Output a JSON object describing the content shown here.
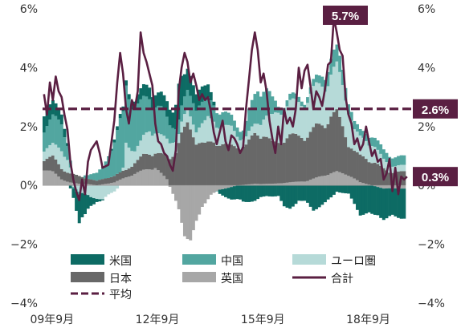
{
  "chart_data": {
    "type": "bar",
    "subtype": "stacked bar with line overlay",
    "y_axis": {
      "range": [
        -4,
        6
      ],
      "ticks": [
        "6%",
        "4%",
        "2%",
        "0%",
        "−2%",
        "−4%"
      ],
      "tick_values": [
        6,
        4,
        2,
        0,
        -2,
        -4
      ],
      "both_sides": true
    },
    "x_axis": {
      "ticks": [
        "09年9月",
        "12年9月",
        "15年9月",
        "18年9月"
      ],
      "tick_months": [
        0,
        36,
        72,
        108
      ]
    },
    "grid": false,
    "legend_placement": "bottom-left inside plot",
    "colors": {
      "us": "#0d6b64",
      "china": "#52a6a0",
      "euro": "#b6dad8",
      "japan": "#686868",
      "uk": "#a7a7a7",
      "total": "#5a1f42",
      "average": "#5a1f42",
      "callout_bg": "#5a1f42"
    },
    "legend": [
      {
        "key": "us",
        "label": "米国",
        "kind": "box"
      },
      {
        "key": "china",
        "label": "中国",
        "kind": "box"
      },
      {
        "key": "euro",
        "label": "ユーロ圏",
        "kind": "box"
      },
      {
        "key": "japan",
        "label": "日本",
        "kind": "box"
      },
      {
        "key": "uk",
        "label": "英国",
        "kind": "box"
      },
      {
        "key": "total",
        "label": "合計",
        "kind": "line"
      },
      {
        "key": "average",
        "label": "平均",
        "kind": "dash"
      }
    ],
    "series_order": [
      "uk",
      "japan",
      "euro",
      "china",
      "us"
    ],
    "knots": {
      "uk": [
        [
          0,
          0.55
        ],
        [
          3,
          0.45
        ],
        [
          6,
          0.2
        ],
        [
          9,
          0.1
        ],
        [
          12,
          0.05
        ],
        [
          15,
          0.05
        ],
        [
          18,
          0.0
        ],
        [
          24,
          0.1
        ],
        [
          30,
          0.35
        ],
        [
          34,
          0.5
        ],
        [
          38,
          0.6
        ],
        [
          42,
          0.2
        ],
        [
          46,
          -0.8
        ],
        [
          48,
          -1.6
        ],
        [
          50,
          -1.8
        ],
        [
          52,
          -1.3
        ],
        [
          54,
          -0.7
        ],
        [
          57,
          -0.3
        ],
        [
          60,
          -0.15
        ],
        [
          66,
          0.0
        ],
        [
          72,
          0.05
        ],
        [
          78,
          0.05
        ],
        [
          84,
          0.1
        ],
        [
          90,
          0.15
        ],
        [
          96,
          0.35
        ],
        [
          100,
          0.45
        ],
        [
          104,
          0.35
        ],
        [
          108,
          0.1
        ],
        [
          112,
          0.0
        ],
        [
          116,
          -0.1
        ],
        [
          120,
          -0.1
        ]
      ],
      "japan": [
        [
          0,
          0.35
        ],
        [
          3,
          0.5
        ],
        [
          6,
          0.35
        ],
        [
          9,
          0.3
        ],
        [
          12,
          0.25
        ],
        [
          14,
          0.2
        ],
        [
          18,
          0.15
        ],
        [
          22,
          0.2
        ],
        [
          28,
          0.25
        ],
        [
          32,
          0.4
        ],
        [
          34,
          0.5
        ],
        [
          38,
          0.5
        ],
        [
          42,
          0.75
        ],
        [
          45,
          1.15
        ],
        [
          47,
          1.7
        ],
        [
          49,
          2.0
        ],
        [
          52,
          1.5
        ],
        [
          55,
          1.35
        ],
        [
          58,
          1.45
        ],
        [
          60,
          1.4
        ],
        [
          63,
          1.3
        ],
        [
          66,
          1.3
        ],
        [
          69,
          1.3
        ],
        [
          72,
          1.65
        ],
        [
          75,
          1.65
        ],
        [
          78,
          1.35
        ],
        [
          80,
          1.35
        ],
        [
          84,
          1.55
        ],
        [
          87,
          1.5
        ],
        [
          90,
          1.5
        ],
        [
          93,
          1.7
        ],
        [
          96,
          1.7
        ],
        [
          98,
          1.9
        ],
        [
          100,
          1.95
        ],
        [
          102,
          1.55
        ],
        [
          104,
          1.05
        ],
        [
          106,
          0.9
        ],
        [
          110,
          0.85
        ],
        [
          113,
          0.75
        ],
        [
          116,
          0.55
        ],
        [
          118,
          0.45
        ],
        [
          120,
          0.45
        ]
      ],
      "euro": [
        [
          0,
          0.35
        ],
        [
          3,
          0.4
        ],
        [
          6,
          0.6
        ],
        [
          8,
          0.45
        ],
        [
          10,
          -0.05
        ],
        [
          12,
          -0.2
        ],
        [
          16,
          -0.4
        ],
        [
          20,
          -0.45
        ],
        [
          24,
          -0.2
        ],
        [
          27,
          0.1
        ],
        [
          28,
          0.9
        ],
        [
          31,
          0.4
        ],
        [
          33,
          0.5
        ],
        [
          36,
          0.8
        ],
        [
          40,
          0.6
        ],
        [
          44,
          0.5
        ],
        [
          46,
          0.3
        ],
        [
          48,
          0.4
        ],
        [
          52,
          0.45
        ],
        [
          56,
          0.8
        ],
        [
          60,
          0.6
        ],
        [
          64,
          0.6
        ],
        [
          66,
          0.4
        ],
        [
          68,
          0.25
        ],
        [
          72,
          0.3
        ],
        [
          76,
          0.7
        ],
        [
          80,
          1.0
        ],
        [
          84,
          1.1
        ],
        [
          88,
          1.1
        ],
        [
          92,
          1.3
        ],
        [
          96,
          1.3
        ],
        [
          100,
          1.5
        ],
        [
          104,
          1.2
        ],
        [
          106,
          0.7
        ],
        [
          108,
          0.6
        ],
        [
          112,
          0.6
        ],
        [
          116,
          0.3
        ],
        [
          120,
          0.2
        ]
      ],
      "china": [
        [
          0,
          0.7
        ],
        [
          3,
          0.9
        ],
        [
          6,
          0.9
        ],
        [
          8,
          0.5
        ],
        [
          10,
          -0.05
        ],
        [
          12,
          -0.1
        ],
        [
          14,
          0.1
        ],
        [
          18,
          0.25
        ],
        [
          20,
          0.4
        ],
        [
          24,
          1.1
        ],
        [
          26,
          1.7
        ],
        [
          28,
          1.9
        ],
        [
          30,
          1.5
        ],
        [
          33,
          1.3
        ],
        [
          36,
          1.1
        ],
        [
          38,
          0.9
        ],
        [
          40,
          0.9
        ],
        [
          43,
          0.6
        ],
        [
          45,
          0.45
        ],
        [
          48,
          0.55
        ],
        [
          52,
          0.8
        ],
        [
          56,
          0.6
        ],
        [
          60,
          0.5
        ],
        [
          64,
          0.35
        ],
        [
          68,
          0.3
        ],
        [
          70,
          0.7
        ],
        [
          73,
          1.1
        ],
        [
          76,
          0.9
        ],
        [
          80,
          0.2
        ],
        [
          84,
          0.2
        ],
        [
          88,
          0.15
        ],
        [
          90,
          0.2
        ],
        [
          94,
          0.25
        ],
        [
          97,
          0.5
        ],
        [
          99,
          0.55
        ],
        [
          102,
          0.5
        ],
        [
          105,
          0.3
        ],
        [
          108,
          0.2
        ],
        [
          112,
          0.3
        ],
        [
          116,
          0.3
        ],
        [
          120,
          0.3
        ]
      ],
      "us": [
        [
          0,
          0.6
        ],
        [
          4,
          0.4
        ],
        [
          7,
          0.3
        ],
        [
          10,
          -0.3
        ],
        [
          12,
          -0.9
        ],
        [
          14,
          -0.7
        ],
        [
          16,
          -0.3
        ],
        [
          18,
          -0.1
        ],
        [
          24,
          0.1
        ],
        [
          30,
          0.2
        ],
        [
          33,
          0.35
        ],
        [
          36,
          0.4
        ],
        [
          40,
          0.45
        ],
        [
          44,
          0.55
        ],
        [
          46,
          1.2
        ],
        [
          48,
          0.7
        ],
        [
          52,
          0.6
        ],
        [
          56,
          0.4
        ],
        [
          60,
          -0.15
        ],
        [
          64,
          -0.4
        ],
        [
          68,
          -0.55
        ],
        [
          72,
          -0.5
        ],
        [
          76,
          -0.35
        ],
        [
          80,
          -0.35
        ],
        [
          82,
          -0.75
        ],
        [
          84,
          -0.75
        ],
        [
          87,
          -0.5
        ],
        [
          90,
          -0.6
        ],
        [
          92,
          -0.8
        ],
        [
          96,
          -0.6
        ],
        [
          100,
          -0.2
        ],
        [
          104,
          -0.3
        ],
        [
          106,
          -0.6
        ],
        [
          108,
          -0.95
        ],
        [
          110,
          -0.95
        ],
        [
          112,
          -1.0
        ],
        [
          114,
          -0.9
        ],
        [
          116,
          -1.0
        ],
        [
          120,
          -0.95
        ]
      ],
      "total": [
        [
          0,
          3.1
        ],
        [
          1,
          2.4
        ],
        [
          2,
          3.5
        ],
        [
          3,
          2.9
        ],
        [
          4,
          3.7
        ],
        [
          5,
          3.2
        ],
        [
          6,
          3.0
        ],
        [
          7,
          2.4
        ],
        [
          8,
          1.9
        ],
        [
          9,
          0.8
        ],
        [
          10,
          0.2
        ],
        [
          11,
          -0.2
        ],
        [
          12,
          -0.5
        ],
        [
          13,
          0.2
        ],
        [
          14,
          -0.3
        ],
        [
          15,
          0.8
        ],
        [
          16,
          1.2
        ],
        [
          18,
          1.5
        ],
        [
          19,
          1.1
        ],
        [
          20,
          0.6
        ],
        [
          22,
          0.7
        ],
        [
          24,
          2.2
        ],
        [
          25,
          3.5
        ],
        [
          26,
          4.5
        ],
        [
          27,
          3.8
        ],
        [
          28,
          2.6
        ],
        [
          29,
          2.1
        ],
        [
          30,
          2.9
        ],
        [
          31,
          2.6
        ],
        [
          32,
          3.2
        ],
        [
          33,
          5.2
        ],
        [
          34,
          4.5
        ],
        [
          35,
          4.2
        ],
        [
          36,
          3.8
        ],
        [
          37,
          3.4
        ],
        [
          38,
          2.1
        ],
        [
          39,
          1.5
        ],
        [
          40,
          1.4
        ],
        [
          41,
          1.1
        ],
        [
          42,
          1.0
        ],
        [
          43,
          0.7
        ],
        [
          44,
          0.5
        ],
        [
          45,
          1.2
        ],
        [
          46,
          3.2
        ],
        [
          47,
          4.0
        ],
        [
          48,
          4.5
        ],
        [
          49,
          4.2
        ],
        [
          50,
          3.5
        ],
        [
          51,
          3.8
        ],
        [
          52,
          3.4
        ],
        [
          53,
          2.9
        ],
        [
          54,
          3.1
        ],
        [
          55,
          2.9
        ],
        [
          56,
          3.0
        ],
        [
          57,
          2.5
        ],
        [
          58,
          1.8
        ],
        [
          59,
          1.4
        ],
        [
          60,
          1.8
        ],
        [
          61,
          2.2
        ],
        [
          62,
          1.5
        ],
        [
          63,
          1.2
        ],
        [
          64,
          1.7
        ],
        [
          65,
          1.6
        ],
        [
          66,
          1.4
        ],
        [
          67,
          1.1
        ],
        [
          68,
          1.3
        ],
        [
          69,
          2.6
        ],
        [
          70,
          3.6
        ],
        [
          71,
          4.6
        ],
        [
          72,
          5.2
        ],
        [
          73,
          4.6
        ],
        [
          74,
          3.5
        ],
        [
          75,
          3.8
        ],
        [
          76,
          3.2
        ],
        [
          77,
          2.2
        ],
        [
          78,
          1.6
        ],
        [
          79,
          1.1
        ],
        [
          80,
          2.0
        ],
        [
          81,
          1.4
        ],
        [
          82,
          2.6
        ],
        [
          83,
          2.1
        ],
        [
          84,
          2.3
        ],
        [
          85,
          2.0
        ],
        [
          86,
          2.6
        ],
        [
          87,
          4.0
        ],
        [
          88,
          3.3
        ],
        [
          89,
          3.9
        ],
        [
          90,
          4.1
        ],
        [
          91,
          3.4
        ],
        [
          92,
          2.6
        ],
        [
          93,
          3.2
        ],
        [
          94,
          3.0
        ],
        [
          95,
          2.7
        ],
        [
          96,
          3.3
        ],
        [
          97,
          4.1
        ],
        [
          98,
          4.2
        ],
        [
          99,
          5.7
        ],
        [
          100,
          5.2
        ],
        [
          101,
          4.6
        ],
        [
          102,
          4.4
        ],
        [
          103,
          3.0
        ],
        [
          104,
          2.4
        ],
        [
          105,
          2.1
        ],
        [
          106,
          1.4
        ],
        [
          107,
          1.6
        ],
        [
          108,
          1.2
        ],
        [
          109,
          1.4
        ],
        [
          110,
          2.0
        ],
        [
          111,
          1.5
        ],
        [
          112,
          1.0
        ],
        [
          113,
          1.2
        ],
        [
          114,
          0.8
        ],
        [
          115,
          0.9
        ],
        [
          116,
          0.2
        ],
        [
          117,
          0.4
        ],
        [
          118,
          0.9
        ],
        [
          119,
          -0.2
        ],
        [
          120,
          0.6
        ],
        [
          121,
          -0.3
        ],
        [
          122,
          0.3
        ],
        [
          123,
          0.2
        ],
        [
          124,
          0.3
        ]
      ]
    },
    "average_value": 2.6,
    "callouts": [
      {
        "label": "5.7%",
        "value": 5.7
      },
      {
        "label": "2.6%",
        "value": 2.6
      },
      {
        "label": "0.3%",
        "value": 0.3
      }
    ],
    "bar_count": 124
  }
}
